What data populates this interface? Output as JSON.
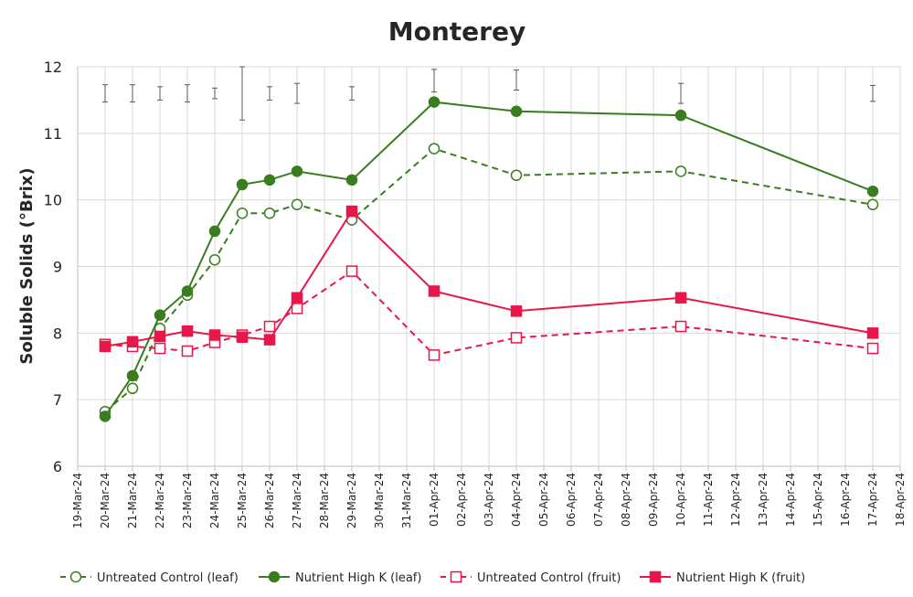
{
  "chart_data": {
    "type": "line",
    "title": "Monterey",
    "xlabel": "",
    "ylabel": "Soluble Solids (°Brix)",
    "ylim": [
      6,
      12
    ],
    "yticks": [
      "6",
      "7",
      "8",
      "9",
      "10",
      "11",
      "12"
    ],
    "x_tick_labels": [
      "19-Mar-24",
      "20-Mar-24",
      "21-Mar-24",
      "22-Mar-24",
      "23-Mar-24",
      "24-Mar-24",
      "25-Mar-24",
      "26-Mar-24",
      "27-Mar-24",
      "28-Mar-24",
      "29-Mar-24",
      "30-Mar-24",
      "31-Mar-24",
      "01-Apr-24",
      "02-Apr-24",
      "03-Apr-24",
      "04-Apr-24",
      "05-Apr-24",
      "06-Apr-24",
      "07-Apr-24",
      "08-Apr-24",
      "09-Apr-24",
      "10-Apr-24",
      "11-Apr-24",
      "12-Apr-24",
      "13-Apr-24",
      "14-Apr-24",
      "15-Apr-24",
      "16-Apr-24",
      "17-Apr-24",
      "18-Apr-24"
    ],
    "x": [
      "20-Mar-24",
      "21-Mar-24",
      "22-Mar-24",
      "23-Mar-24",
      "24-Mar-24",
      "25-Mar-24",
      "26-Mar-24",
      "27-Mar-24",
      "29-Mar-24",
      "01-Apr-24",
      "04-Apr-24",
      "10-Apr-24",
      "17-Apr-24"
    ],
    "series": [
      {
        "name": "Untreated Control (leaf)",
        "color": "#3a7d1e",
        "dashed": true,
        "marker": "circle",
        "filled": false,
        "values": [
          6.82,
          7.17,
          8.07,
          8.57,
          9.1,
          9.8,
          9.8,
          9.93,
          9.7,
          10.77,
          10.37,
          10.43,
          9.93
        ]
      },
      {
        "name": "Nutrient High K (leaf)",
        "color": "#3a7d1e",
        "dashed": false,
        "marker": "circle",
        "filled": true,
        "values": [
          6.75,
          7.36,
          8.27,
          8.63,
          9.53,
          10.23,
          10.3,
          10.43,
          10.3,
          11.47,
          11.33,
          11.27,
          10.13
        ]
      },
      {
        "name": "Untreated Control (fruit)",
        "color": "#e8174a",
        "dashed": true,
        "marker": "square",
        "filled": false,
        "values": [
          7.83,
          7.8,
          7.77,
          7.73,
          7.86,
          7.97,
          8.1,
          8.37,
          8.93,
          7.67,
          7.93,
          8.1,
          7.77
        ]
      },
      {
        "name": "Nutrient High K (fruit)",
        "color": "#e8174a",
        "dashed": false,
        "marker": "square",
        "filled": true,
        "values": [
          7.8,
          7.87,
          7.95,
          8.03,
          7.97,
          7.94,
          7.9,
          8.53,
          9.83,
          8.63,
          8.33,
          8.53,
          8.0
        ]
      }
    ],
    "error_bars": [
      {
        "x": "20-Mar-24",
        "low": 11.47,
        "high": 11.73
      },
      {
        "x": "21-Mar-24",
        "low": 11.47,
        "high": 11.73
      },
      {
        "x": "22-Mar-24",
        "low": 11.5,
        "high": 11.7
      },
      {
        "x": "23-Mar-24",
        "low": 11.47,
        "high": 11.73
      },
      {
        "x": "24-Mar-24",
        "low": 11.52,
        "high": 11.68
      },
      {
        "x": "25-Mar-24",
        "low": 11.2,
        "high": 12.0
      },
      {
        "x": "26-Mar-24",
        "low": 11.5,
        "high": 11.7
      },
      {
        "x": "27-Mar-24",
        "low": 11.45,
        "high": 11.75
      },
      {
        "x": "29-Mar-24",
        "low": 11.5,
        "high": 11.7
      },
      {
        "x": "01-Apr-24",
        "low": 11.62,
        "high": 11.96
      },
      {
        "x": "04-Apr-24",
        "low": 11.65,
        "high": 11.95
      },
      {
        "x": "10-Apr-24",
        "low": 11.45,
        "high": 11.75
      },
      {
        "x": "17-Apr-24",
        "low": 11.48,
        "high": 11.72
      }
    ],
    "grid": true,
    "legend": "bottom"
  }
}
